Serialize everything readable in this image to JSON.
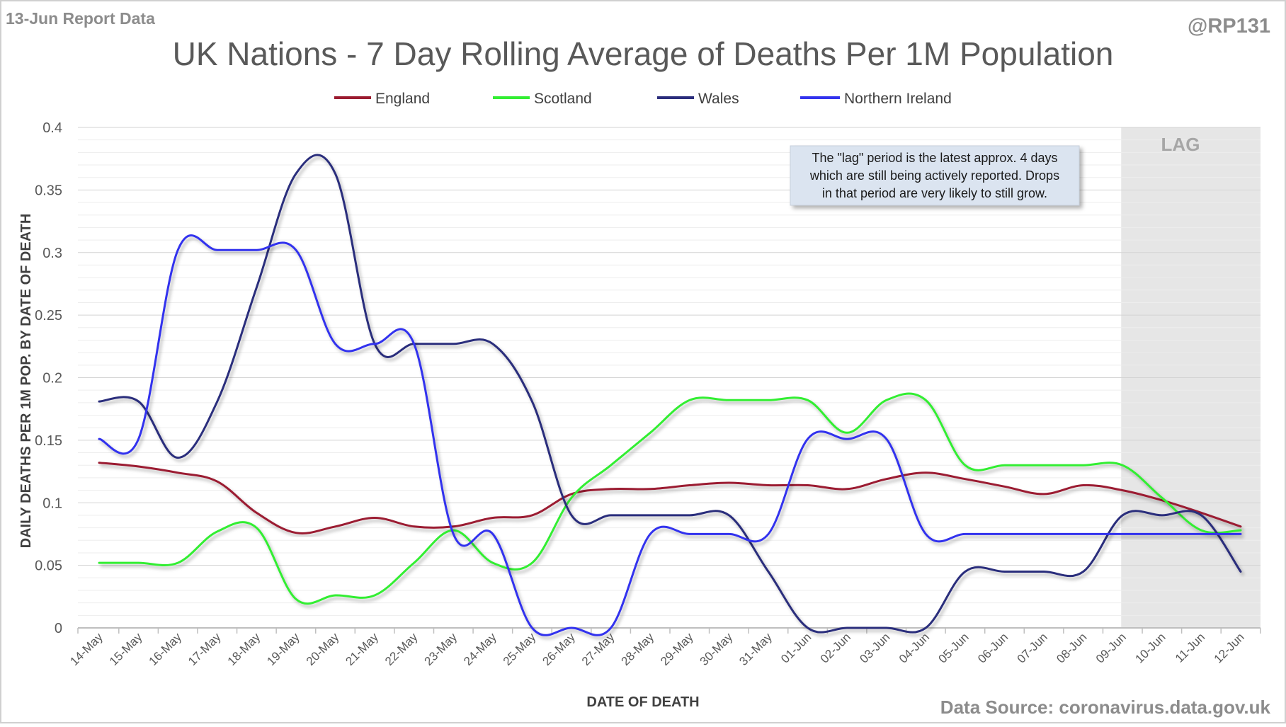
{
  "report_label": "13-Jun Report Data",
  "author_handle": "@RP131",
  "source_note": "Data Source: coronavirus.data.gov.uk",
  "lag_label": "LAG",
  "annotation_lines": [
    "The \"lag\" period is the latest approx. 4 days",
    "which are still being actively reported. Drops",
    "in that period are very likely to still grow."
  ],
  "colors": {
    "england": "#9b1b30",
    "scotland": "#33ee33",
    "wales": "#2b2d7c",
    "northern_ireland": "#3333ee",
    "lag_band": "#e6e6e6",
    "annotation_bg": "#dbe4f0"
  },
  "chart_data": {
    "type": "line",
    "title": "UK Nations - 7 Day Rolling Average of Deaths Per 1M Population",
    "xlabel": "DATE OF DEATH",
    "ylabel": "DAILY DEATHS PER 1M POP. BY DATE OF DEATH",
    "ylim": [
      0,
      0.4
    ],
    "yticks": [
      "0",
      "0.05",
      "0.1",
      "0.15",
      "0.2",
      "0.25",
      "0.3",
      "0.35",
      "0.4"
    ],
    "ytick_values": [
      0,
      0.05,
      0.1,
      0.15,
      0.2,
      0.25,
      0.3,
      0.35,
      0.4
    ],
    "grid": true,
    "smooth": true,
    "legend_position": "top",
    "lag_period": [
      "09-Jun",
      "12-Jun"
    ],
    "categories": [
      "14-May",
      "15-May",
      "16-May",
      "17-May",
      "18-May",
      "19-May",
      "20-May",
      "21-May",
      "22-May",
      "23-May",
      "24-May",
      "25-May",
      "26-May",
      "27-May",
      "28-May",
      "29-May",
      "30-May",
      "31-May",
      "01-Jun",
      "02-Jun",
      "03-Jun",
      "04-Jun",
      "05-Jun",
      "06-Jun",
      "07-Jun",
      "08-Jun",
      "09-Jun",
      "10-Jun",
      "11-Jun",
      "12-Jun"
    ],
    "series": [
      {
        "name": "England",
        "color_key": "england",
        "values": [
          0.132,
          0.129,
          0.124,
          0.117,
          0.092,
          0.076,
          0.081,
          0.088,
          0.081,
          0.081,
          0.088,
          0.09,
          0.107,
          0.111,
          0.111,
          0.114,
          0.116,
          0.114,
          0.114,
          0.111,
          0.119,
          0.124,
          0.119,
          0.113,
          0.107,
          0.114,
          0.11,
          0.102,
          0.092,
          0.081
        ]
      },
      {
        "name": "Scotland",
        "color_key": "scotland",
        "values": [
          0.052,
          0.052,
          0.052,
          0.077,
          0.08,
          0.023,
          0.026,
          0.026,
          0.052,
          0.078,
          0.052,
          0.052,
          0.104,
          0.13,
          0.156,
          0.182,
          0.182,
          0.182,
          0.182,
          0.156,
          0.182,
          0.182,
          0.13,
          0.13,
          0.13,
          0.13,
          0.13,
          0.104,
          0.078,
          0.078
        ]
      },
      {
        "name": "Wales",
        "color_key": "wales",
        "values": [
          0.181,
          0.181,
          0.136,
          0.181,
          0.272,
          0.363,
          0.363,
          0.227,
          0.227,
          0.227,
          0.227,
          0.181,
          0.09,
          0.09,
          0.09,
          0.09,
          0.09,
          0.045,
          0.0,
          0.0,
          0.0,
          0.0,
          0.045,
          0.045,
          0.045,
          0.045,
          0.09,
          0.09,
          0.09,
          0.045
        ]
      },
      {
        "name": "Northern Ireland",
        "color_key": "northern_ireland",
        "values": [
          0.151,
          0.151,
          0.302,
          0.302,
          0.302,
          0.302,
          0.227,
          0.227,
          0.227,
          0.075,
          0.075,
          0.0,
          0.0,
          0.0,
          0.075,
          0.075,
          0.075,
          0.075,
          0.151,
          0.151,
          0.151,
          0.075,
          0.075,
          0.075,
          0.075,
          0.075,
          0.075,
          0.075,
          0.075,
          0.075
        ]
      }
    ]
  }
}
